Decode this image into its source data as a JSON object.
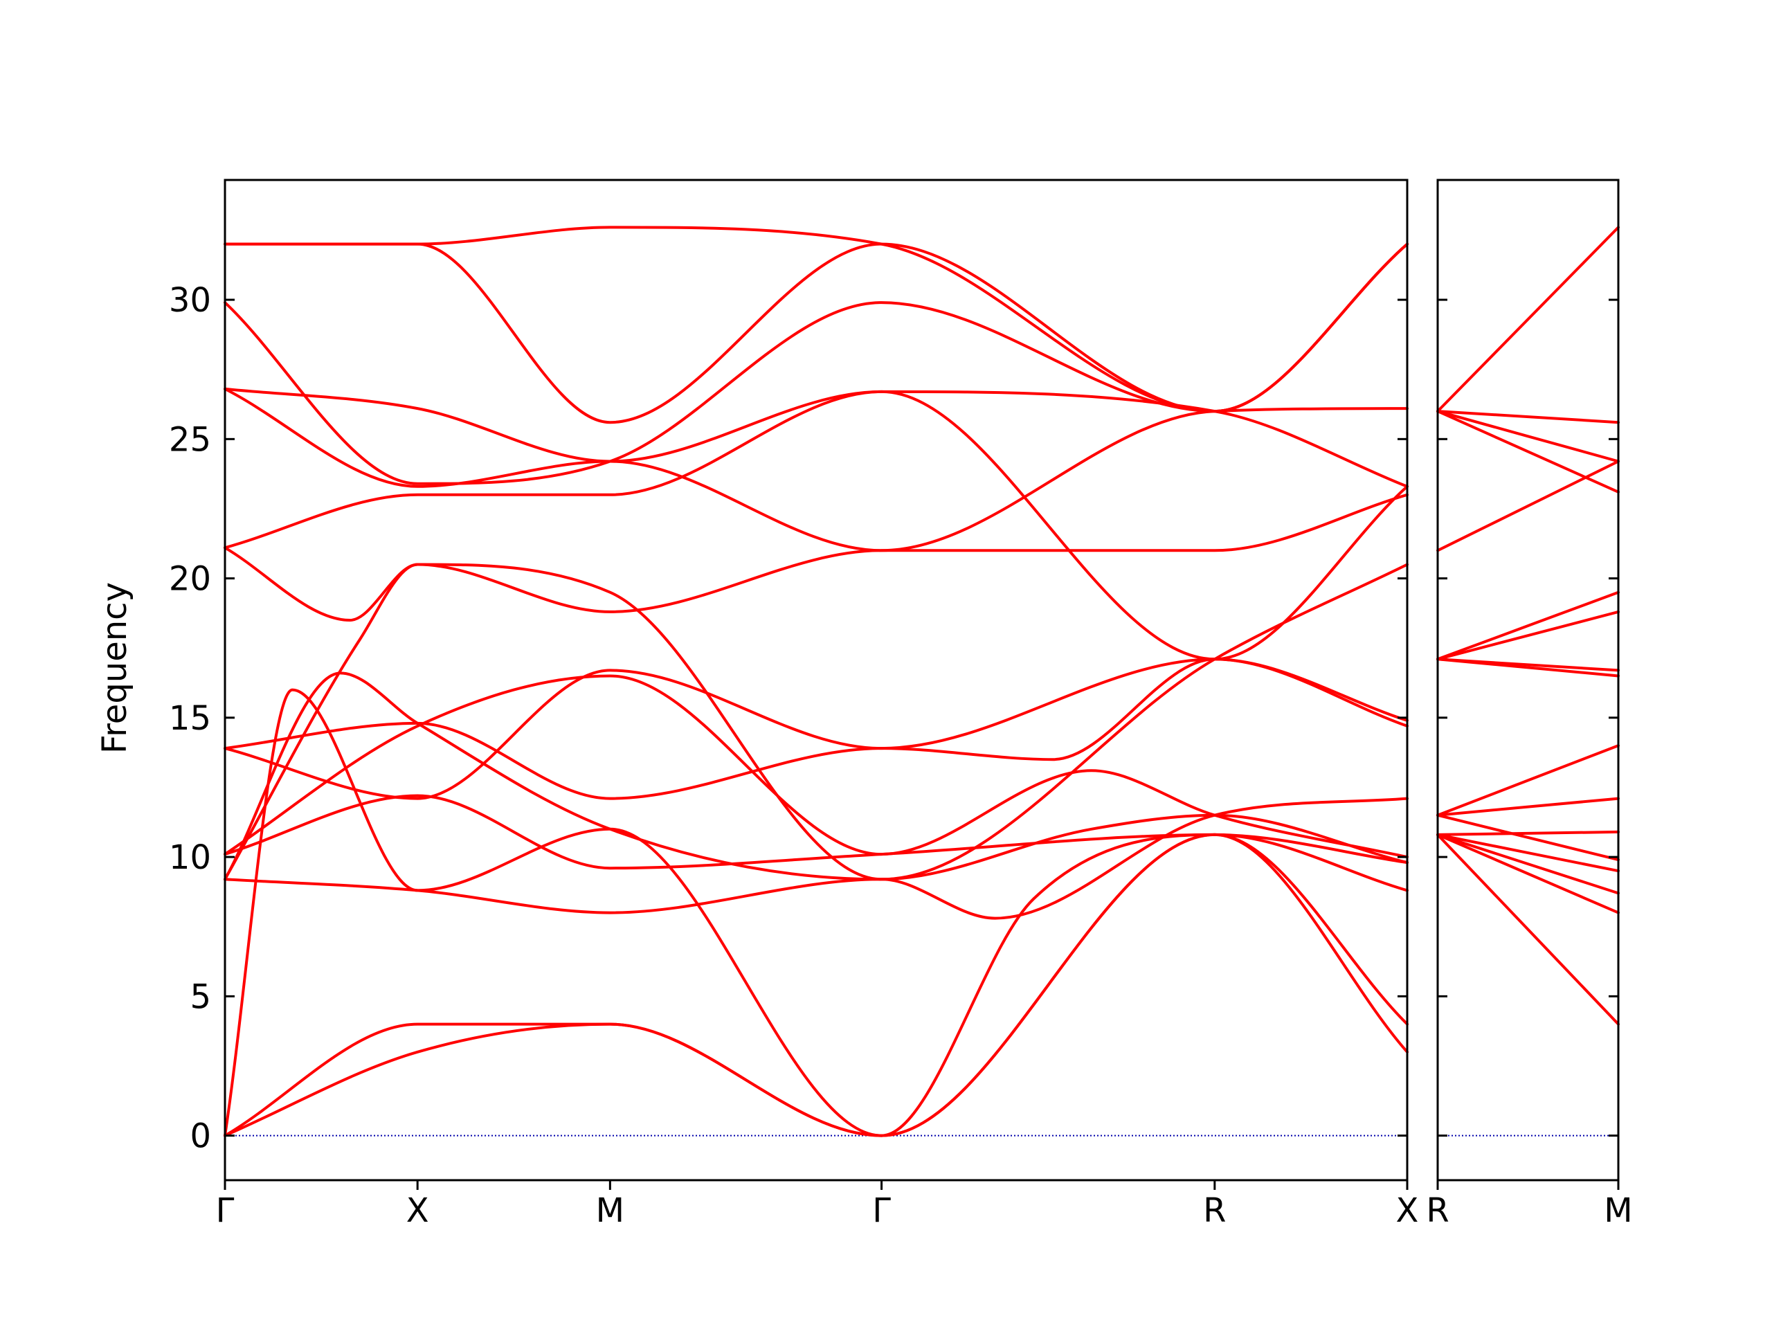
{
  "chart_data": {
    "type": "line",
    "ylabel": "Frequency",
    "ylim": [
      -1.6,
      34.3
    ],
    "yticks": [
      0,
      5,
      10,
      15,
      20,
      25,
      30
    ],
    "ytick_labels": [
      "0",
      "5",
      "10",
      "15",
      "20",
      "25",
      "30"
    ],
    "grid": false,
    "legend": "none",
    "line_color": "#ff0000",
    "zero_line_color": "#0000aa",
    "panels": [
      {
        "xticks": [
          0,
          1,
          2,
          3.41,
          5.14,
          6.14
        ],
        "xtick_labels": [
          "Γ",
          "X",
          "M",
          "Γ",
          "R",
          "X"
        ],
        "bands": [
          {
            "x": [
              0,
              1,
              2,
              3.41,
              5.14,
              6.14
            ],
            "y": [
              0,
              3.0,
              4.0,
              0,
              10.8,
              3.0
            ]
          },
          {
            "x": [
              0,
              1,
              2,
              3.41,
              5.14,
              6.14
            ],
            "y": [
              0,
              4.0,
              4.0,
              0,
              10.8,
              4.0
            ]
          },
          {
            "x": [
              0,
              0.35,
              1,
              2,
              3.41,
              4.2,
              5.14,
              6.14
            ],
            "y": [
              0,
              16.0,
              8.8,
              11.0,
              0,
              8.5,
              10.8,
              8.8
            ]
          },
          {
            "x": [
              0,
              0.7,
              1,
              2,
              3.41,
              5.14,
              6.14
            ],
            "y": [
              9.2,
              17.8,
              20.5,
              18.8,
              21.0,
              21.0,
              23.0
            ]
          },
          {
            "x": [
              0,
              0.6,
              1,
              2,
              3.41,
              4.5,
              5.14,
              6.14
            ],
            "y": [
              9.2,
              16.6,
              14.8,
              11.0,
              9.2,
              11.0,
              11.5,
              9.8
            ]
          },
          {
            "x": [
              0,
              1,
              2,
              3.41,
              4.0,
              5.14,
              6.14
            ],
            "y": [
              9.2,
              8.8,
              8.0,
              9.2,
              7.8,
              11.5,
              12.1
            ]
          },
          {
            "x": [
              0,
              1,
              2,
              3.41,
              4.5,
              5.14,
              6.14
            ],
            "y": [
              10.1,
              14.7,
              16.5,
              10.1,
              13.1,
              11.5,
              10.0
            ]
          },
          {
            "x": [
              0,
              1,
              2,
              3.41,
              5.14,
              6.14
            ],
            "y": [
              10.1,
              12.2,
              9.6,
              10.1,
              10.8,
              9.8
            ]
          },
          {
            "x": [
              0,
              1,
              2,
              3.41,
              5.14,
              6.14
            ],
            "y": [
              13.9,
              12.1,
              16.7,
              13.9,
              17.1,
              14.7
            ]
          },
          {
            "x": [
              0,
              1,
              2,
              3.41,
              4.3,
              5.14,
              6.14
            ],
            "y": [
              13.9,
              14.8,
              12.1,
              13.9,
              13.5,
              17.1,
              14.9
            ]
          },
          {
            "x": [
              0,
              0.65,
              1,
              2,
              3.41,
              5.14,
              6.14
            ],
            "y": [
              21.1,
              18.5,
              20.5,
              19.5,
              9.2,
              17.1,
              20.5
            ]
          },
          {
            "x": [
              0,
              1,
              2,
              3.41,
              5.14,
              6.14
            ],
            "y": [
              21.1,
              23.0,
              23.0,
              26.7,
              17.1,
              23.3
            ]
          },
          {
            "x": [
              0,
              1,
              2,
              3.41,
              5.14,
              6.14
            ],
            "y": [
              26.8,
              23.3,
              24.2,
              21.0,
              26.0,
              26.1
            ]
          },
          {
            "x": [
              0,
              1,
              2,
              3.41,
              5.14,
              6.14
            ],
            "y": [
              26.8,
              26.1,
              24.2,
              26.7,
              26.0,
              23.3
            ]
          },
          {
            "x": [
              0,
              1,
              2,
              3.41,
              5.14,
              6.14
            ],
            "y": [
              29.9,
              23.4,
              24.2,
              29.9,
              26.0,
              32.0
            ]
          },
          {
            "x": [
              0,
              1,
              2,
              3.41,
              5.14,
              6.14
            ],
            "y": [
              32.0,
              32.0,
              32.6,
              32.0,
              26.0,
              32.0
            ]
          },
          {
            "x": [
              0,
              1,
              2,
              3.41,
              5.14,
              6.14
            ],
            "y": [
              32.0,
              32.0,
              25.6,
              32.0,
              26.0,
              32.0
            ]
          }
        ]
      },
      {
        "xticks": [
          0,
          1
        ],
        "xtick_labels": [
          "R",
          "M"
        ],
        "bands": [
          {
            "x": [
              0,
              1
            ],
            "y": [
              10.8,
              4.0
            ]
          },
          {
            "x": [
              0,
              1
            ],
            "y": [
              10.8,
              8.0
            ]
          },
          {
            "x": [
              0,
              1
            ],
            "y": [
              10.8,
              8.7
            ]
          },
          {
            "x": [
              0,
              1
            ],
            "y": [
              10.8,
              9.5
            ]
          },
          {
            "x": [
              0,
              1
            ],
            "y": [
              10.8,
              10.9
            ]
          },
          {
            "x": [
              0,
              1
            ],
            "y": [
              11.5,
              12.1
            ]
          },
          {
            "x": [
              0,
              1
            ],
            "y": [
              11.5,
              14.0
            ]
          },
          {
            "x": [
              0,
              1
            ],
            "y": [
              11.5,
              9.9
            ]
          },
          {
            "x": [
              0,
              1
            ],
            "y": [
              17.1,
              16.5
            ]
          },
          {
            "x": [
              0,
              1
            ],
            "y": [
              17.1,
              16.7
            ]
          },
          {
            "x": [
              0,
              1
            ],
            "y": [
              17.1,
              18.8
            ]
          },
          {
            "x": [
              0,
              1
            ],
            "y": [
              17.1,
              19.5
            ]
          },
          {
            "x": [
              0,
              1
            ],
            "y": [
              21.0,
              24.2
            ]
          },
          {
            "x": [
              0,
              1
            ],
            "y": [
              26.0,
              23.1
            ]
          },
          {
            "x": [
              0,
              1
            ],
            "y": [
              26.0,
              24.2
            ]
          },
          {
            "x": [
              0,
              1
            ],
            "y": [
              26.0,
              25.6
            ]
          },
          {
            "x": [
              0,
              1
            ],
            "y": [
              26.0,
              32.6
            ]
          }
        ]
      }
    ]
  }
}
